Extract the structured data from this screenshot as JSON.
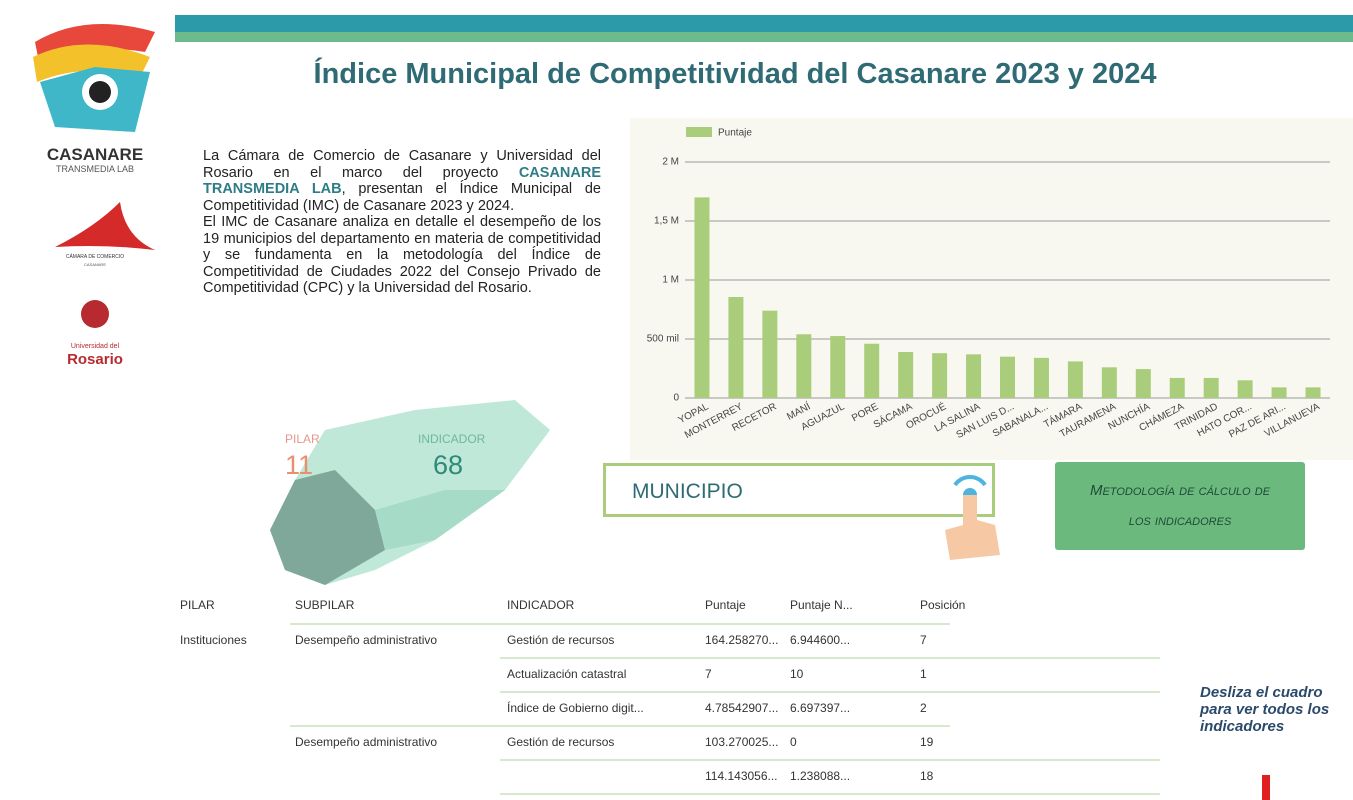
{
  "header": {
    "title": "Índice Municipal de Competitividad del Casanare 2023 y 2024"
  },
  "logos": {
    "casanare": "CASANARE",
    "transmedia": "TRANSMEDIA LAB",
    "camara": "CÁMARA DE COMERCIO",
    "camara_sub": "CASANARE",
    "universidad": "Universidad del",
    "rosario": "Rosario"
  },
  "intro": {
    "p1a": "La Cámara de Comercio de Casanare y Universidad del Rosario en el marco del proyecto ",
    "p1_highlight": "CASANARE TRANSMEDIA LAB",
    "p1b": ", presentan el Índice Municipal de Competitividad (IMC) de Casanare 2023 y 2024.",
    "p2": "El IMC de Casanare analiza en detalle el desempeño de los 19 municipios del departamento en materia de competitividad y se fundamenta en la metodología del Índice de Competitividad de Ciudades 2022 del Consejo Privado de Competitividad (CPC) y la Universidad del Rosario."
  },
  "chart": {
    "type": "bar",
    "legend": "Puntaje",
    "color": "#a9cd7a",
    "categories": [
      "YOPAL",
      "MONTERREY",
      "RECETOR",
      "MANÍ",
      "AGUAZUL",
      "PORE",
      "SÁCAMA",
      "OROCUÉ",
      "LA SALINA",
      "SAN LUIS D...",
      "SABANALA...",
      "TÁMARA",
      "TAURAMENA",
      "NUNCHÍA",
      "CHÁMEZA",
      "TRINIDAD",
      "HATO COR...",
      "PAZ DE ARI...",
      "VILLANUEVA"
    ],
    "values": [
      1700000,
      856000,
      740000,
      540000,
      525000,
      460000,
      390000,
      380000,
      370000,
      350000,
      340000,
      310000,
      260000,
      245000,
      170000,
      170000,
      150000,
      90000,
      90000
    ],
    "ylim": [
      0,
      2000000
    ],
    "yticks": [
      0,
      {
        "value": 500000,
        "label": "500 mil"
      },
      {
        "value": 1000000,
        "label": "1 M"
      },
      {
        "value": 1500000,
        "label": "1,5 M"
      },
      {
        "value": 2000000,
        "label": "2 M"
      }
    ],
    "grid": true
  },
  "kpis": {
    "pilar_label": "PILAR",
    "pilar_value": 11,
    "indicador_label": "INDICADOR",
    "indicador_value": 68
  },
  "filter": {
    "label": "MUNICIPIO"
  },
  "button": {
    "label": "Metodología de cálculo de los indicadores"
  },
  "table": {
    "headers": [
      "PILAR",
      "SUBPILAR",
      "INDICADOR",
      "Puntaje",
      "Puntaje N...",
      "Posición"
    ],
    "rows": [
      [
        "Instituciones",
        "Desempeño administrativo",
        "Gestión de recursos",
        "164.258270...",
        "6.944600...",
        7
      ],
      [
        null,
        null,
        "Actualización catastral",
        7,
        10,
        1
      ],
      [
        null,
        null,
        "Índice de Gobierno digit...",
        "4.78542907...",
        "6.697397...",
        2
      ],
      [
        null,
        "Desempeño administrativo",
        "Gestión de recursos",
        "103.270025...",
        0,
        19
      ],
      [
        null,
        null,
        null,
        "114.143056...",
        "1.238088...",
        18
      ]
    ]
  },
  "note": "Desliza el cuadro para ver todos los indicadores"
}
